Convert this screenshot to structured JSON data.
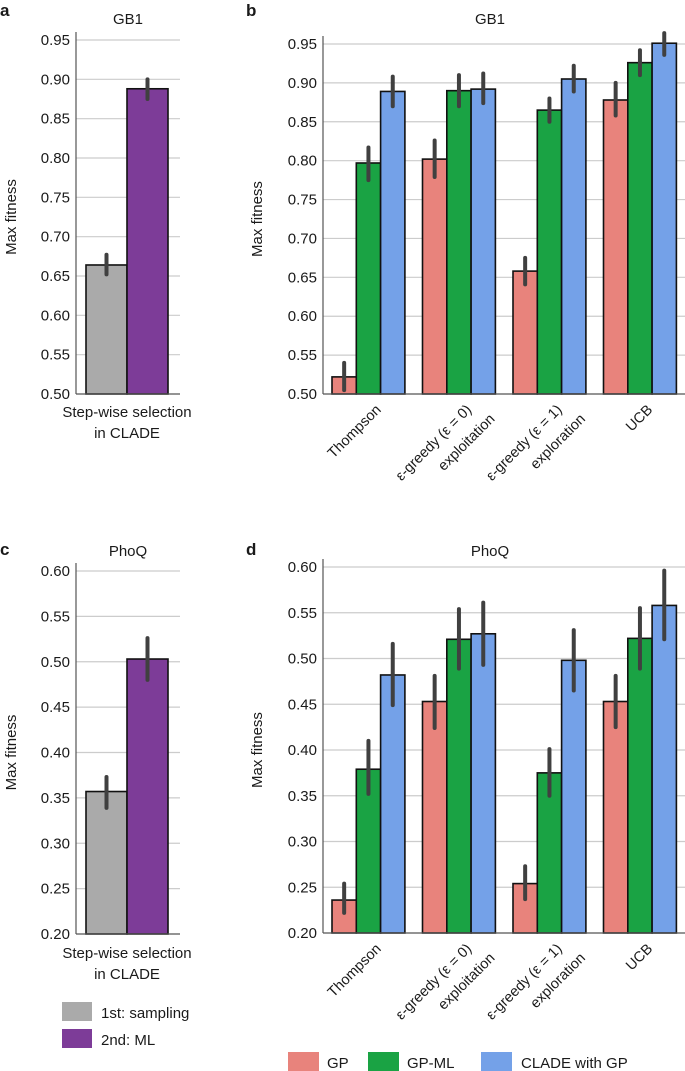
{
  "panels": {
    "a": {
      "letter": "a"
    },
    "b": {
      "letter": "b"
    },
    "c": {
      "letter": "c"
    },
    "d": {
      "letter": "d"
    }
  },
  "legend_stepwise": {
    "items": [
      {
        "label": "1st: sampling",
        "color": "#aaaaaa"
      },
      {
        "label": "2nd: ML",
        "color": "#7d3c98"
      }
    ]
  },
  "legend_methods": {
    "items": [
      {
        "label": "GP",
        "color": "#e8837c"
      },
      {
        "label": "GP-ML",
        "color": "#1aa344"
      },
      {
        "label": "CLADE with GP",
        "color": "#74a1e8"
      }
    ]
  },
  "chart_data": [
    {
      "panel": "a",
      "type": "bar",
      "title": "GB1",
      "xlabel": "Step-wise selection in CLADE",
      "xlabel_lines": [
        "Step-wise selection",
        "in CLADE"
      ],
      "ylabel": "Max fitness",
      "ylim": [
        0.5,
        0.95
      ],
      "yticks": [
        "0.50",
        "0.55",
        "0.60",
        "0.65",
        "0.70",
        "0.75",
        "0.80",
        "0.85",
        "0.90",
        "0.95"
      ],
      "grid": true,
      "series": [
        {
          "name": "1st: sampling",
          "color": "#aaaaaa",
          "values": [
            0.664
          ],
          "err_low": [
            0.652
          ],
          "err_high": [
            0.677
          ]
        },
        {
          "name": "2nd: ML",
          "color": "#7d3c98",
          "values": [
            0.888
          ],
          "err_low": [
            0.875
          ],
          "err_high": [
            0.9
          ]
        }
      ]
    },
    {
      "panel": "b",
      "type": "bar",
      "title": "GB1",
      "ylabel": "Max fitness",
      "ylim": [
        0.5,
        0.95
      ],
      "yticks": [
        "0.50",
        "0.55",
        "0.60",
        "0.65",
        "0.70",
        "0.75",
        "0.80",
        "0.85",
        "0.90",
        "0.95"
      ],
      "grid": true,
      "categories": [
        [
          "Thompson"
        ],
        [
          "ε-greedy (ε = 0)",
          "exploitation"
        ],
        [
          "ε-greedy (ε = 1)",
          "exploration"
        ],
        [
          "UCB"
        ]
      ],
      "series": [
        {
          "name": "GP",
          "color": "#e8837c",
          "values": [
            0.522,
            0.802,
            0.658,
            0.878
          ],
          "err_low": [
            0.505,
            0.779,
            0.641,
            0.858
          ],
          "err_high": [
            0.54,
            0.826,
            0.675,
            0.9
          ]
        },
        {
          "name": "GP-ML",
          "color": "#1aa344",
          "values": [
            0.797,
            0.89,
            0.865,
            0.926
          ],
          "err_low": [
            0.775,
            0.87,
            0.85,
            0.91
          ],
          "err_high": [
            0.817,
            0.91,
            0.88,
            0.942
          ]
        },
        {
          "name": "CLADE with GP",
          "color": "#74a1e8",
          "values": [
            0.889,
            0.892,
            0.905,
            0.951
          ],
          "err_low": [
            0.87,
            0.874,
            0.889,
            0.936
          ],
          "err_high": [
            0.908,
            0.912,
            0.922,
            0.964
          ]
        }
      ]
    },
    {
      "panel": "c",
      "type": "bar",
      "title": "PhoQ",
      "xlabel": "Step-wise selection in CLADE",
      "xlabel_lines": [
        "Step-wise selection",
        "in CLADE"
      ],
      "ylabel": "Max fitness",
      "ylim": [
        0.2,
        0.6
      ],
      "yticks": [
        "0.20",
        "0.25",
        "0.30",
        "0.35",
        "0.40",
        "0.45",
        "0.50",
        "0.55",
        "0.60"
      ],
      "grid": true,
      "series": [
        {
          "name": "1st: sampling",
          "color": "#aaaaaa",
          "values": [
            0.357
          ],
          "err_low": [
            0.339
          ],
          "err_high": [
            0.373
          ]
        },
        {
          "name": "2nd: ML",
          "color": "#7d3c98",
          "values": [
            0.503
          ],
          "err_low": [
            0.48
          ],
          "err_high": [
            0.526
          ]
        }
      ]
    },
    {
      "panel": "d",
      "type": "bar",
      "title": "PhoQ",
      "ylabel": "Max fitness",
      "ylim": [
        0.2,
        0.6
      ],
      "yticks": [
        "0.20",
        "0.25",
        "0.30",
        "0.35",
        "0.40",
        "0.45",
        "0.50",
        "0.55",
        "0.60"
      ],
      "grid": true,
      "categories": [
        [
          "Thompson"
        ],
        [
          "ε-greedy (ε = 0)",
          "exploitation"
        ],
        [
          "ε-greedy (ε = 1)",
          "exploration"
        ],
        [
          "UCB"
        ]
      ],
      "series": [
        {
          "name": "GP",
          "color": "#e8837c",
          "values": [
            0.236,
            0.453,
            0.254,
            0.453
          ],
          "err_low": [
            0.222,
            0.424,
            0.237,
            0.425
          ],
          "err_high": [
            0.254,
            0.481,
            0.273,
            0.481
          ]
        },
        {
          "name": "GP-ML",
          "color": "#1aa344",
          "values": [
            0.379,
            0.521,
            0.375,
            0.522
          ],
          "err_low": [
            0.352,
            0.489,
            0.35,
            0.489
          ],
          "err_high": [
            0.41,
            0.554,
            0.401,
            0.555
          ]
        },
        {
          "name": "CLADE with GP",
          "color": "#74a1e8",
          "values": [
            0.482,
            0.527,
            0.498,
            0.558
          ],
          "err_low": [
            0.449,
            0.493,
            0.465,
            0.521
          ],
          "err_high": [
            0.516,
            0.561,
            0.531,
            0.596
          ]
        }
      ]
    }
  ]
}
